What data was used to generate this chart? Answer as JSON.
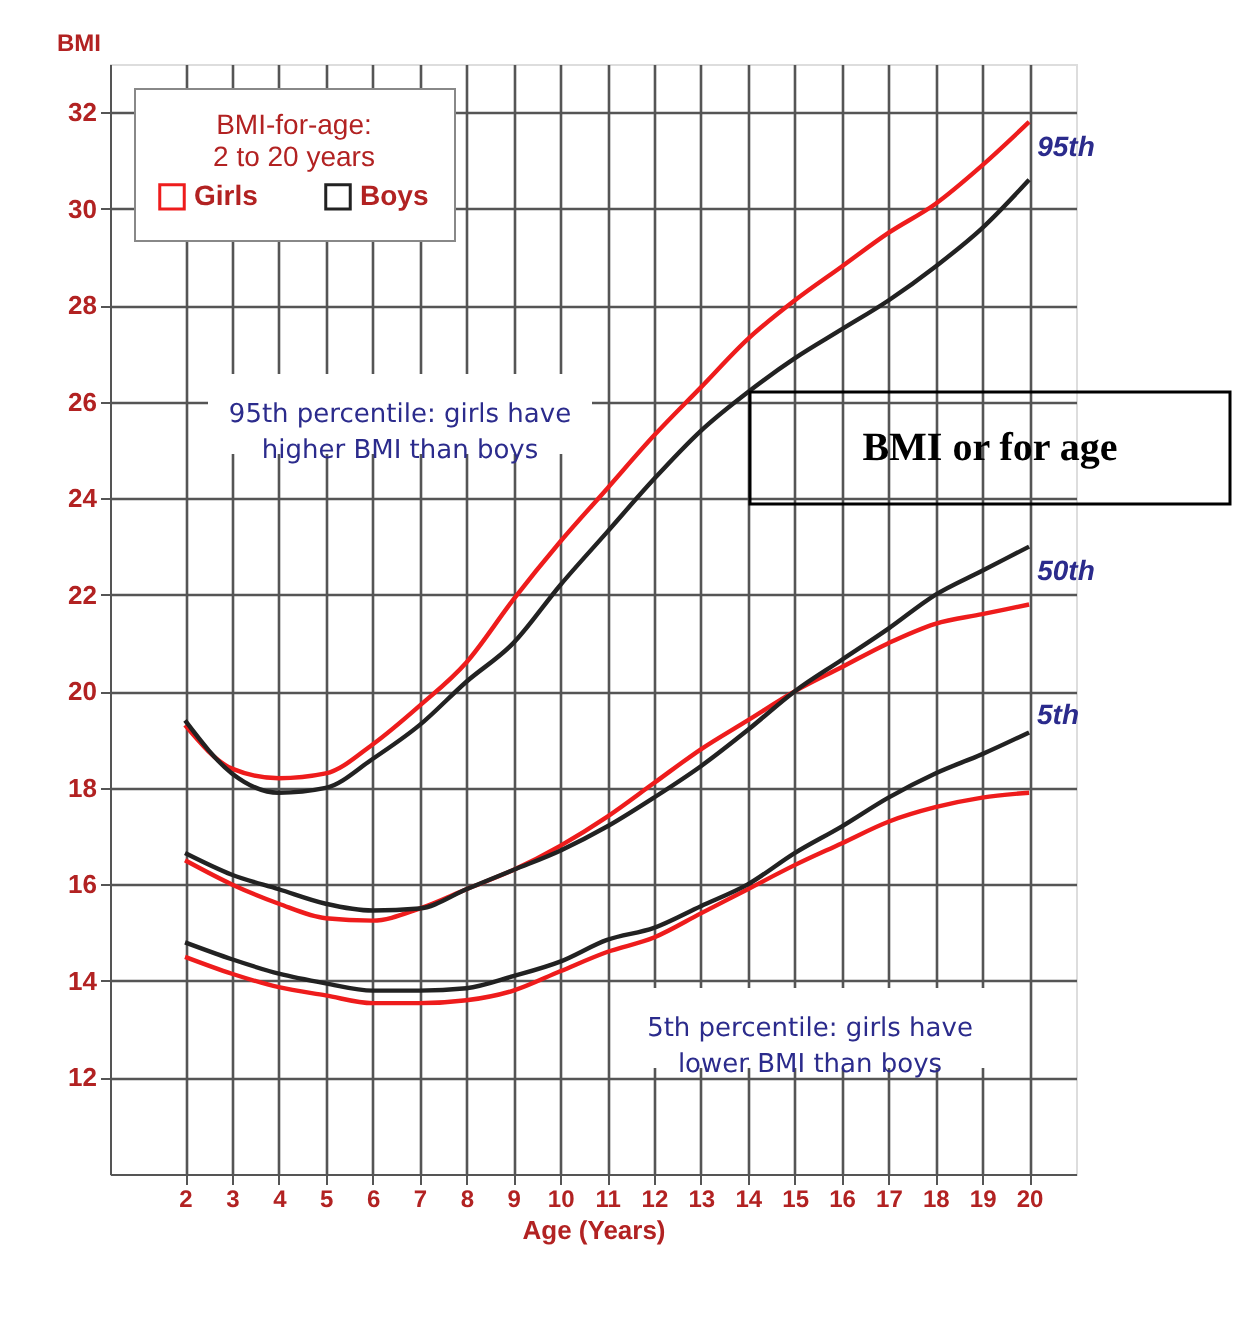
{
  "chart_data": {
    "type": "line",
    "xlabel": "Age (Years)",
    "ylabel": "BMI",
    "legend_title": "BMI-for-age:\n2 to 20 years",
    "x": [
      2,
      3,
      4,
      5,
      6,
      7,
      8,
      9,
      10,
      11,
      12,
      13,
      14,
      15,
      16,
      17,
      18,
      19,
      20
    ],
    "series": [
      {
        "name": "Girls",
        "color": "#ee1c1c",
        "values": [
          19.3,
          18.4,
          18.2,
          18.3,
          18.9,
          19.7,
          20.6,
          21.9,
          23.1,
          24.2,
          25.3,
          26.3,
          27.3,
          28.1,
          28.8,
          29.5,
          30.1,
          30.9,
          31.8
        ]
      },
      {
        "name": "Boys",
        "color": "#222222",
        "values": [
          19.4,
          18.3,
          17.9,
          18.0,
          18.6,
          19.3,
          20.2,
          21.0,
          22.2,
          23.3,
          24.4,
          25.4,
          26.2,
          26.9,
          27.5,
          28.1,
          28.8,
          29.6,
          30.6
        ]
      },
      {
        "color": "#ee1c1c",
        "values": [
          16.5,
          16.0,
          15.6,
          15.3,
          15.25,
          15.5,
          15.9,
          16.3,
          16.8,
          17.4,
          18.1,
          18.8,
          19.4,
          20.0,
          20.5,
          21.0,
          21.4,
          21.6,
          21.8
        ]
      },
      {
        "color": "#222222",
        "values": [
          16.65,
          16.2,
          15.9,
          15.6,
          15.46,
          15.5,
          15.9,
          16.3,
          16.7,
          17.2,
          17.8,
          18.45,
          19.2,
          20.0,
          20.65,
          21.3,
          22.0,
          22.5,
          23.0
        ]
      },
      {
        "color": "#ee1c1c",
        "values": [
          14.5,
          14.15,
          13.87,
          13.7,
          13.54,
          13.54,
          13.6,
          13.8,
          14.2,
          14.6,
          14.9,
          15.4,
          15.9,
          16.4,
          16.85,
          17.3,
          17.6,
          17.8,
          17.9
        ]
      },
      {
        "color": "#222222",
        "values": [
          14.8,
          14.45,
          14.15,
          13.95,
          13.8,
          13.8,
          13.85,
          14.1,
          14.4,
          14.85,
          15.1,
          15.55,
          16.0,
          16.65,
          17.2,
          17.8,
          18.3,
          18.7,
          19.15
        ]
      }
    ],
    "xlim": [
      0.4,
      21
    ],
    "ylim": [
      10,
      33
    ],
    "xticks": [
      2,
      3,
      4,
      5,
      6,
      7,
      8,
      9,
      10,
      11,
      12,
      13,
      14,
      15,
      16,
      17,
      18,
      19,
      20
    ],
    "yticks": [
      12,
      14,
      16,
      18,
      20,
      22,
      24,
      26,
      28,
      30,
      32
    ],
    "grid": true,
    "legend": "top left",
    "marker": "none",
    "line_style": "solid",
    "annotations": [
      "95th",
      "50th",
      "5th",
      "95th percentile: girls have\nhigher BMI than boys",
      "5th percentile: girls have\nlower BMI than boys",
      "BMI or for age"
    ]
  }
}
